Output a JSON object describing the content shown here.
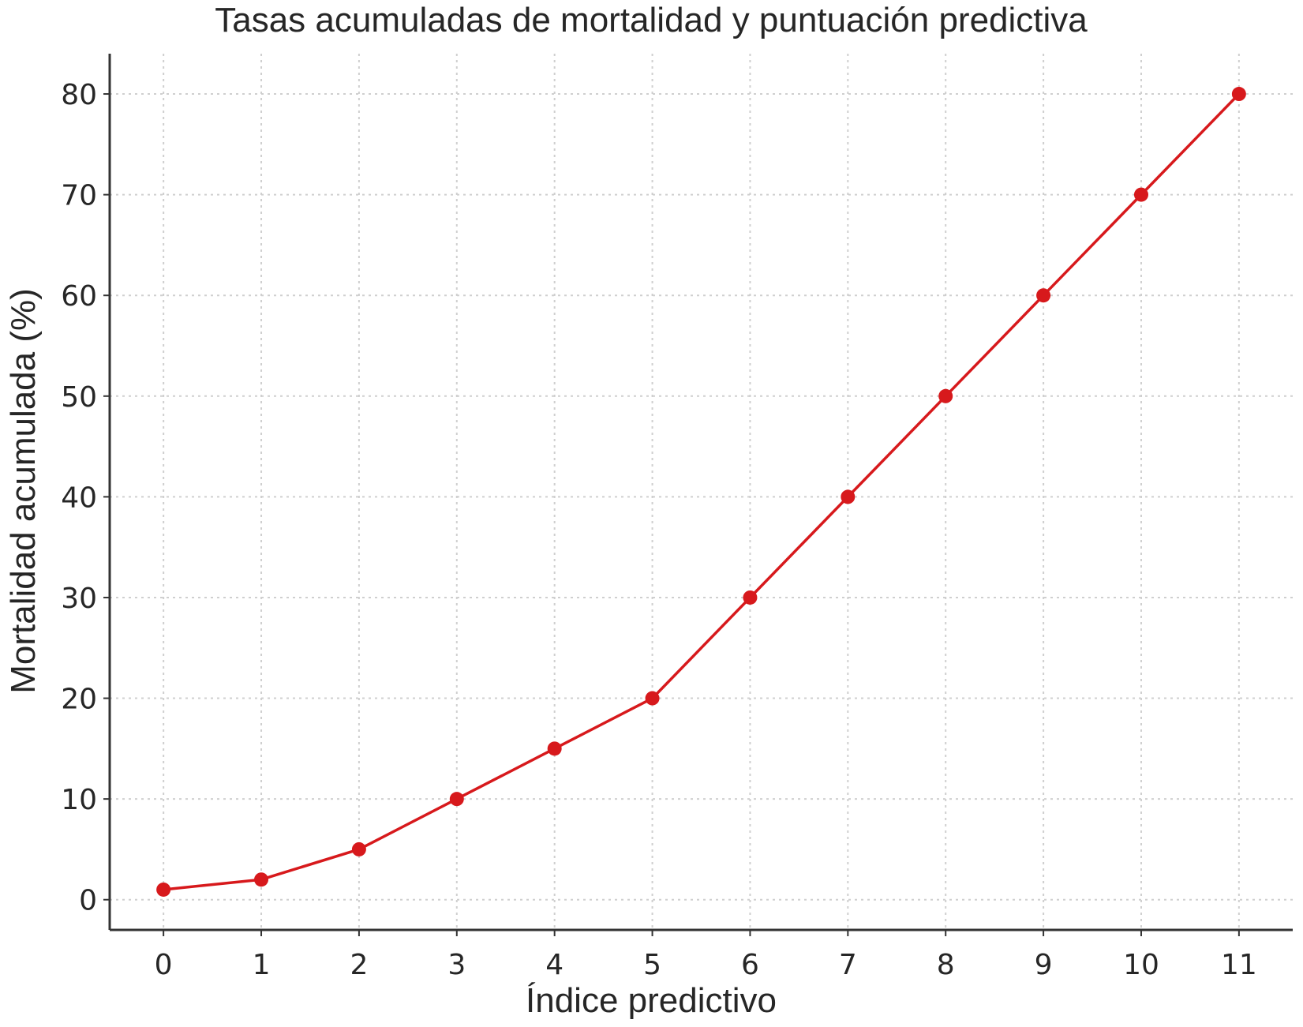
{
  "chart_data": {
    "type": "line",
    "title": "Tasas acumuladas de mortalidad y puntuación predictiva",
    "xlabel": "Índice predictivo",
    "ylabel": "Mortalidad acumulada (%)",
    "x": [
      0,
      1,
      2,
      3,
      4,
      5,
      6,
      7,
      8,
      9,
      10,
      11
    ],
    "series": [
      {
        "values": [
          1,
          2,
          5,
          10,
          15,
          20,
          30,
          40,
          50,
          60,
          70,
          80
        ],
        "color": "#d7191c"
      }
    ],
    "xticks": [
      "0",
      "1",
      "2",
      "3",
      "4",
      "5",
      "6",
      "7",
      "8",
      "9",
      "10",
      "11"
    ],
    "yticks": [
      "0",
      "10",
      "20",
      "30",
      "40",
      "50",
      "60",
      "70",
      "80"
    ],
    "xlim": [
      -0.55,
      11.55
    ],
    "ylim": [
      -3,
      84
    ],
    "grid": true,
    "markers": true
  }
}
